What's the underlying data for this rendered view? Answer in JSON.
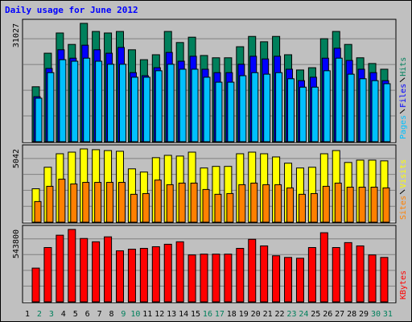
{
  "title": "Daily usage for June 2012",
  "categories": [
    "1",
    "2",
    "3",
    "4",
    "5",
    "6",
    "7",
    "8",
    "9",
    "10",
    "11",
    "12",
    "13",
    "14",
    "15",
    "16",
    "17",
    "18",
    "19",
    "20",
    "21",
    "22",
    "23",
    "24",
    "25",
    "26",
    "27",
    "28",
    "29",
    "30",
    "31"
  ],
  "category_colors": [
    "#000000",
    "#00805c",
    "#00805c",
    "#000000",
    "#000000",
    "#000000",
    "#000000",
    "#000000",
    "#00805c",
    "#00805c",
    "#000000",
    "#000000",
    "#000000",
    "#000000",
    "#000000",
    "#00805c",
    "#00805c",
    "#000000",
    "#000000",
    "#000000",
    "#000000",
    "#000000",
    "#00805c",
    "#00805c",
    "#000000",
    "#000000",
    "#000000",
    "#000000",
    "#000000",
    "#00805c",
    "#00805c"
  ],
  "chart_data": [
    {
      "type": "bar",
      "ylim": [
        0,
        31027
      ],
      "yticks": [
        31027
      ],
      "series": [
        {
          "name": "Hits",
          "color": "#00805c",
          "values": [
            14400,
            23200,
            28500,
            25500,
            31027,
            28900,
            28500,
            28900,
            24100,
            21500,
            22800,
            28900,
            26000,
            27400,
            22600,
            22000,
            22000,
            24900,
            27600,
            26200,
            27600,
            22800,
            18800,
            19400,
            27000,
            28900,
            25500,
            22000,
            20500,
            19000,
            null
          ]
        },
        {
          "name": "Files",
          "color": "#0000ff",
          "values": [
            11800,
            19200,
            24100,
            21900,
            25300,
            24100,
            23200,
            24700,
            18100,
            17300,
            19400,
            23400,
            21100,
            22400,
            19000,
            18100,
            18100,
            20300,
            22400,
            21700,
            22400,
            19000,
            16000,
            16900,
            21900,
            24500,
            21300,
            19000,
            18100,
            16000,
            null
          ]
        },
        {
          "name": "Pages",
          "color": "#00c0ff",
          "values": [
            11400,
            18100,
            21500,
            21100,
            21900,
            21100,
            20300,
            20300,
            16900,
            16900,
            18600,
            20300,
            19000,
            19000,
            16900,
            15600,
            15600,
            17300,
            18100,
            17700,
            18100,
            16500,
            14300,
            14300,
            18600,
            21900,
            17700,
            16500,
            16000,
            15200,
            null
          ]
        }
      ]
    },
    {
      "type": "bar",
      "ylim": [
        0,
        5042
      ],
      "yticks": [
        5042
      ],
      "series": [
        {
          "name": "Visits",
          "color": "#ffff00",
          "values": [
            2300,
            3780,
            4710,
            4820,
            5042,
            4990,
            4930,
            4880,
            3670,
            3450,
            4440,
            4600,
            4550,
            4820,
            3730,
            3840,
            3840,
            4710,
            4820,
            4710,
            4490,
            4060,
            3730,
            3780,
            4710,
            4930,
            4110,
            4270,
            4270,
            4220,
            null
          ]
        },
        {
          "name": "Sites",
          "color": "#ff8000",
          "values": [
            1420,
            2470,
            2960,
            2630,
            2740,
            2740,
            2740,
            2740,
            1920,
            1970,
            2900,
            2580,
            2690,
            2690,
            2250,
            1920,
            1970,
            2580,
            2690,
            2580,
            2580,
            2360,
            1920,
            1970,
            2470,
            2690,
            2410,
            2410,
            2410,
            2360,
            null
          ]
        }
      ]
    },
    {
      "type": "bar",
      "ylim": [
        0,
        543800
      ],
      "yticks": [
        543800
      ],
      "series": [
        {
          "name": "KBytes",
          "color": "#ff0000",
          "values": [
            253400,
            407900,
            500600,
            543800,
            475900,
            451100,
            488200,
            383200,
            395500,
            401700,
            414100,
            432600,
            451100,
            352300,
            358400,
            358400,
            358400,
            401700,
            469700,
            420200,
            346100,
            333700,
            327500,
            407900,
            519100,
            407900,
            445000,
            420200,
            352300,
            333700,
            null
          ]
        }
      ]
    }
  ]
}
